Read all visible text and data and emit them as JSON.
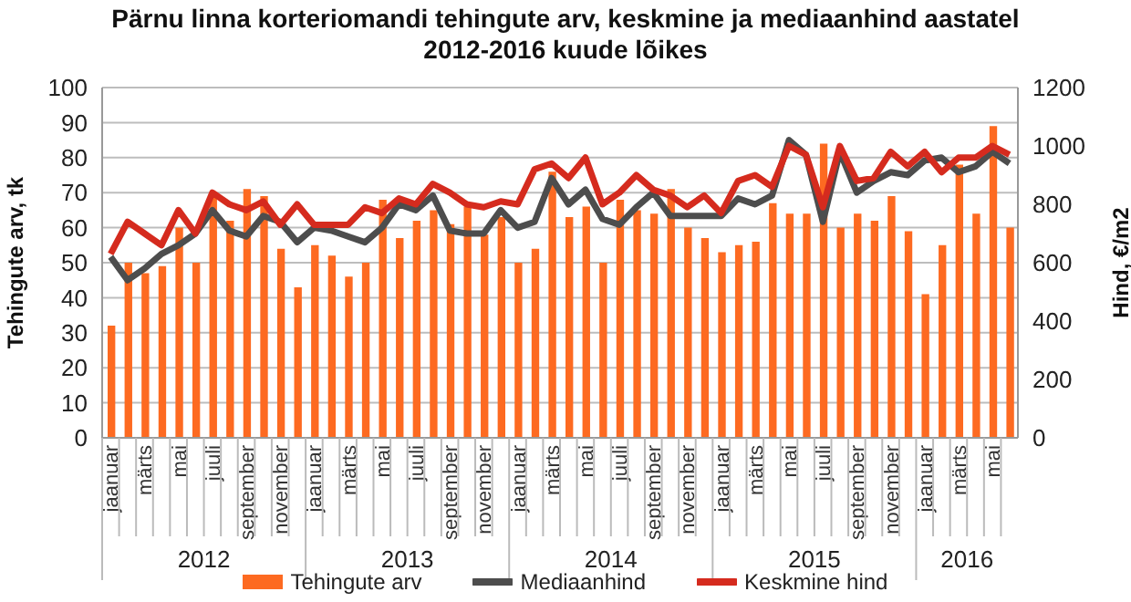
{
  "chart_data": {
    "type": "bar",
    "title": "Pärnu linna korteriomandi tehingute arv, keskmine ja mediaanhind aastatel 2012-2016 kuude lõikes",
    "ylabel": "Tehingute arv, tk",
    "y2label": "Hind, €/m2",
    "categories": [
      "jaanuar",
      null,
      "märts",
      null,
      "mai",
      null,
      "juuli",
      null,
      "september",
      null,
      "november",
      null,
      "jaanuar",
      null,
      "märts",
      null,
      "mai",
      null,
      "juuli",
      null,
      "september",
      null,
      "november",
      null,
      "jaanuar",
      null,
      "märts",
      null,
      "mai",
      null,
      "juuli",
      null,
      "september",
      null,
      "november",
      null,
      "jaanuar",
      null,
      "märts",
      null,
      "mai",
      null,
      "juuli",
      null,
      "september",
      null,
      "november",
      null,
      "jaanuar",
      null,
      "märts",
      null,
      "mai",
      null
    ],
    "annotations": [
      "2012",
      "2013",
      "2014",
      "2015",
      "2016"
    ],
    "series": [
      {
        "name": "Tehingute arv",
        "color": "#fd6a21",
        "values": [
          32,
          50,
          47,
          49,
          60,
          50,
          69,
          62,
          71,
          69,
          54,
          43,
          55,
          52,
          46,
          50,
          68,
          57,
          62,
          65,
          61,
          66,
          58,
          63,
          50,
          54,
          76,
          63,
          66,
          50,
          68,
          65,
          64,
          71,
          60,
          57,
          53,
          55,
          56,
          67,
          64,
          64,
          84,
          60,
          64,
          62,
          69,
          59,
          41,
          55,
          78,
          64,
          89,
          60
        ]
      },
      {
        "name": "Mediaanhind",
        "type": "line",
        "axis": "y2",
        "color": "#4d4d4d",
        "values": [
          620,
          540,
          580,
          630,
          660,
          700,
          780,
          710,
          690,
          760,
          740,
          670,
          720,
          710,
          690,
          670,
          720,
          800,
          780,
          830,
          710,
          700,
          700,
          780,
          720,
          740,
          890,
          800,
          850,
          750,
          730,
          790,
          840,
          760,
          760,
          760,
          760,
          820,
          800,
          830,
          1020,
          970,
          740,
          980,
          840,
          880,
          910,
          900,
          950,
          960,
          910,
          930,
          980,
          940
        ]
      },
      {
        "name": "Keskmine hind",
        "type": "line",
        "axis": "y2",
        "color": "#d52b1e",
        "values": [
          630,
          740,
          700,
          660,
          780,
          700,
          840,
          800,
          780,
          810,
          730,
          800,
          730,
          730,
          730,
          790,
          770,
          820,
          800,
          870,
          840,
          800,
          790,
          810,
          800,
          920,
          940,
          890,
          960,
          800,
          840,
          900,
          850,
          830,
          790,
          830,
          770,
          880,
          900,
          860,
          1000,
          970,
          790,
          1000,
          880,
          890,
          980,
          930,
          980,
          910,
          960,
          960,
          1000,
          970
        ]
      }
    ],
    "ylim": [
      0,
      100
    ],
    "yticks": [
      0,
      10,
      20,
      30,
      40,
      50,
      60,
      70,
      80,
      90,
      100
    ],
    "y2lim": [
      0,
      1200
    ],
    "y2ticks": [
      0,
      200,
      400,
      600,
      800,
      1000,
      1200
    ],
    "grid": "y",
    "legend": "bottom",
    "marker": "none",
    "line_style": "solid"
  }
}
